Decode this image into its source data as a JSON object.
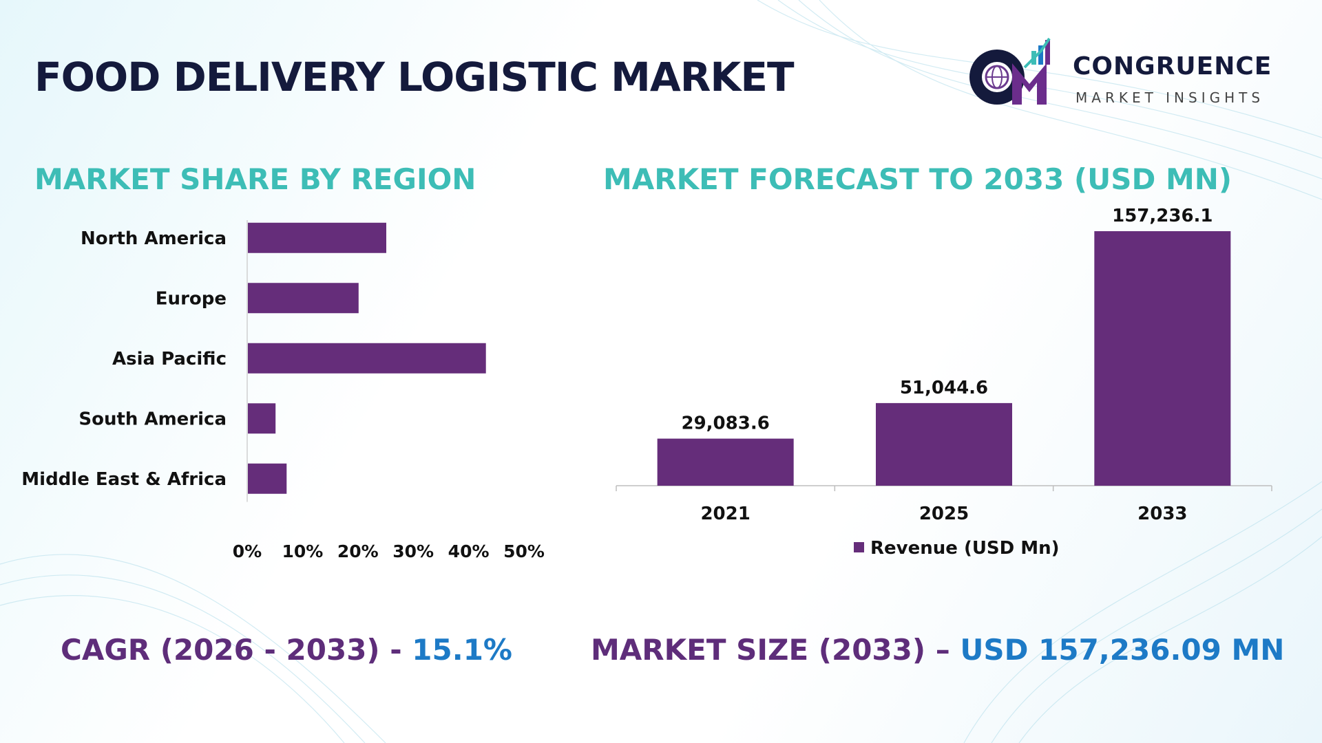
{
  "title": "FOOD DELIVERY LOGISTIC MARKET",
  "logo": {
    "name": "CONGRUENCE",
    "subtitle": "MARKET INSIGHTS",
    "mark_letters": "CM"
  },
  "colors": {
    "bar": "#652d7a",
    "section_title": "#3dbdb6",
    "main_title": "#141a3c",
    "stat_label": "#5e2d7a",
    "stat_value": "#1d7ac6"
  },
  "chart_data": [
    {
      "type": "bar",
      "orientation": "horizontal",
      "title": "MARKET SHARE BY REGION",
      "categories": [
        "North America",
        "Europe",
        "Asia Pacific",
        "South America",
        "Middle East & Africa"
      ],
      "values": [
        25,
        20,
        43,
        5,
        7
      ],
      "value_unit": "%",
      "xlim": [
        0,
        50
      ],
      "x_ticks": [
        "0%",
        "10%",
        "20%",
        "30%",
        "40%",
        "50%"
      ],
      "grid": false,
      "legend": "none"
    },
    {
      "type": "bar",
      "orientation": "vertical",
      "title": "MARKET FORECAST TO 2033 (USD MN)",
      "categories": [
        "2021",
        "2025",
        "2033"
      ],
      "series": [
        {
          "name": "Revenue (USD Mn)",
          "values": [
            29083.6,
            51044.6,
            157236.1
          ],
          "labels": [
            "29,083.6",
            "51,044.6",
            "157,236.1"
          ]
        }
      ],
      "ylim": [
        0,
        170000
      ],
      "grid": false,
      "legend": "bottom"
    }
  ],
  "stats": {
    "cagr_label": "CAGR (2026 - 2033) - ",
    "cagr_value": "15.1%",
    "size_label": "MARKET SIZE (2033) – ",
    "size_value": "USD 157,236.09 MN"
  }
}
